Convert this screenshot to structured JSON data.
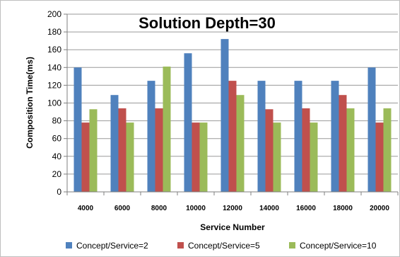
{
  "chart_data": {
    "type": "bar",
    "title": "Solution Depth=30",
    "xlabel": "Service Number",
    "ylabel": "Composition Time(ms)",
    "categories": [
      "4000",
      "6000",
      "8000",
      "10000",
      "12000",
      "14000",
      "16000",
      "18000",
      "20000"
    ],
    "ylim": [
      0,
      200
    ],
    "yticks": [
      0,
      20,
      40,
      60,
      80,
      100,
      120,
      140,
      160,
      180,
      200
    ],
    "grid": true,
    "legend_position": "bottom",
    "series": [
      {
        "name": "Concept/Service=2",
        "color": "#4f81bd",
        "values": [
          140,
          109,
          125,
          156,
          172,
          125,
          125,
          125,
          140
        ]
      },
      {
        "name": "Concept/Service=5",
        "color": "#c0504d",
        "values": [
          78,
          94,
          94,
          78,
          125,
          93,
          94,
          109,
          78
        ]
      },
      {
        "name": "Concept/Service=10",
        "color": "#9bbb59",
        "values": [
          93,
          78,
          141,
          78,
          109,
          78,
          78,
          94,
          94
        ]
      }
    ]
  }
}
